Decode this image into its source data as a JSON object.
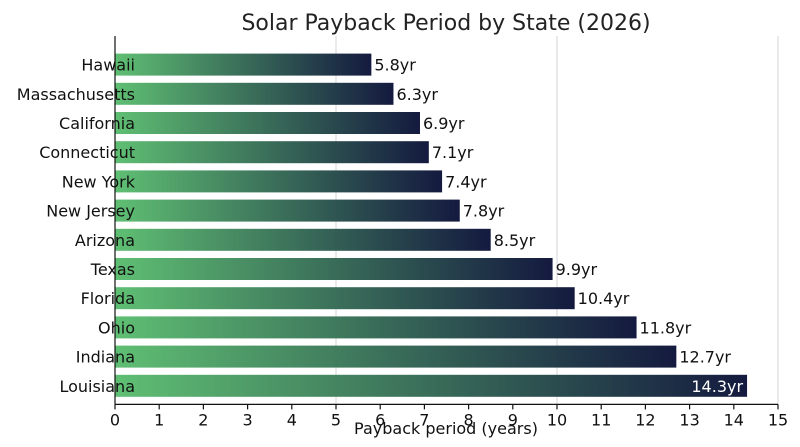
{
  "chart_data": {
    "type": "bar",
    "orientation": "horizontal",
    "title": "Solar Payback Period by State (2026)",
    "xlabel": "Payback period (years)",
    "ylabel": "",
    "xlim": [
      0,
      15
    ],
    "xticks": [
      0,
      1,
      2,
      3,
      4,
      5,
      6,
      7,
      8,
      9,
      10,
      11,
      12,
      13,
      14,
      15
    ],
    "grid": "vertical gridlines at 5, 10, 15",
    "bar_gradient": [
      "#5fbf73",
      "#141a3f"
    ],
    "categories": [
      "Hawaii",
      "Massachusetts",
      "California",
      "Connecticut",
      "New York",
      "New Jersey",
      "Arizona",
      "Texas",
      "Florida",
      "Ohio",
      "Indiana",
      "Louisiana"
    ],
    "values": [
      5.8,
      6.3,
      6.9,
      7.1,
      7.4,
      7.8,
      8.5,
      9.9,
      10.4,
      11.8,
      12.7,
      14.3
    ],
    "value_labels": [
      "5.8yr",
      "6.3yr",
      "6.9yr",
      "7.1yr",
      "7.4yr",
      "7.8yr",
      "8.5yr",
      "9.9yr",
      "10.4yr",
      "11.8yr",
      "12.7yr",
      "14.3yr"
    ]
  }
}
